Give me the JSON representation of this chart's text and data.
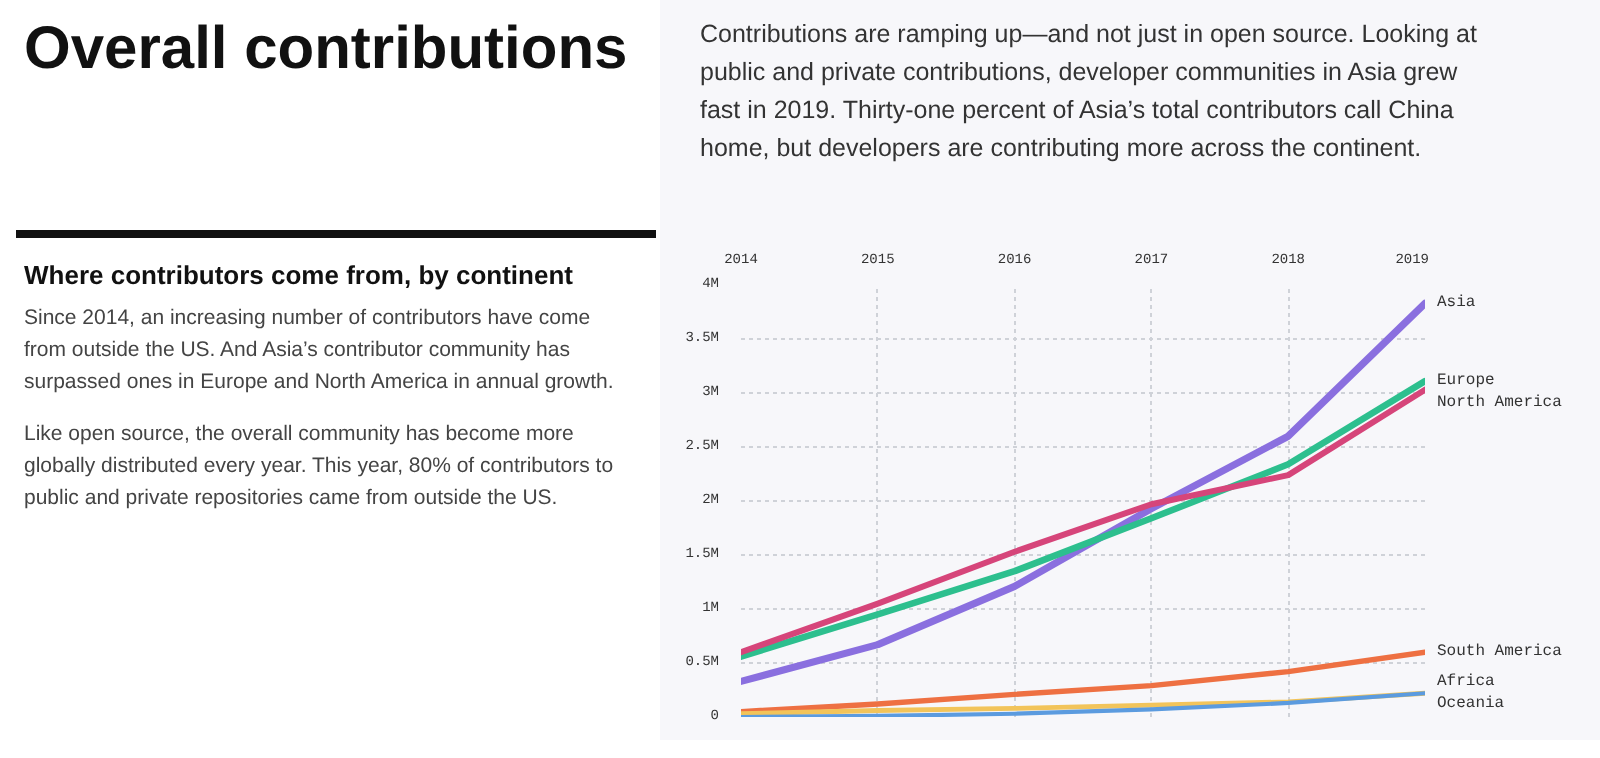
{
  "chart_data": {
    "type": "line",
    "title": "Overall contributions",
    "subtitle": "Contributions are ramping up—and not just in open source. Looking at public and private contributions, developer communities in Asia grew fast in 2019. Thirty-one percent of Asia’s total contributors call China home, but developers are contributing more across the continent.",
    "annotations": [
      "Where contributors come from, by continent",
      "Since 2014, an increasing number of contributors have come from outside the US. And Asia’s contributor community has surpassed ones in Europe and North America in annual growth.",
      "Like open source, the overall community has become more globally distributed every year. This year, 80% of contributors to public and private repositories came from outside the US."
    ],
    "x": [
      2014,
      2015,
      2016,
      2017,
      2018,
      2019
    ],
    "series": [
      {
        "name": "Asia",
        "color": "#8a6fdf",
        "values": [
          0.33,
          0.67,
          1.21,
          1.93,
          2.6,
          3.83
        ]
      },
      {
        "name": "Europe",
        "color": "#2dbf8e",
        "values": [
          0.56,
          0.95,
          1.35,
          1.84,
          2.34,
          3.11
        ]
      },
      {
        "name": "North America",
        "color": "#d6457a",
        "values": [
          0.6,
          1.05,
          1.53,
          1.97,
          2.24,
          3.03
        ]
      },
      {
        "name": "South America",
        "color": "#ee7042",
        "values": [
          0.05,
          0.12,
          0.21,
          0.29,
          0.42,
          0.6
        ]
      },
      {
        "name": "Africa",
        "color": "#f2c45a",
        "values": [
          0.03,
          0.06,
          0.08,
          0.11,
          0.14,
          0.22
        ]
      },
      {
        "name": "Oceania",
        "color": "#5b9bdf",
        "values": [
          0.0,
          0.01,
          0.03,
          0.07,
          0.13,
          0.22
        ]
      }
    ],
    "xlim": [
      2014,
      2019
    ],
    "xticks": [
      2014,
      2015,
      2016,
      2017,
      2018,
      2019
    ],
    "ylim": [
      0,
      4
    ],
    "yticks": [
      {
        "value": 0,
        "label": "0"
      },
      {
        "value": 0.5,
        "label": "0.5M"
      },
      {
        "value": 1,
        "label": "1M"
      },
      {
        "value": 1.5,
        "label": "1.5M"
      },
      {
        "value": 2,
        "label": "2M"
      },
      {
        "value": 2.5,
        "label": "2.5M"
      },
      {
        "value": 3,
        "label": "3M"
      },
      {
        "value": 3.5,
        "label": "3.5M"
      },
      {
        "value": 4,
        "label": "4M"
      }
    ],
    "grid": true,
    "line_style": "solid",
    "marker": "none"
  }
}
